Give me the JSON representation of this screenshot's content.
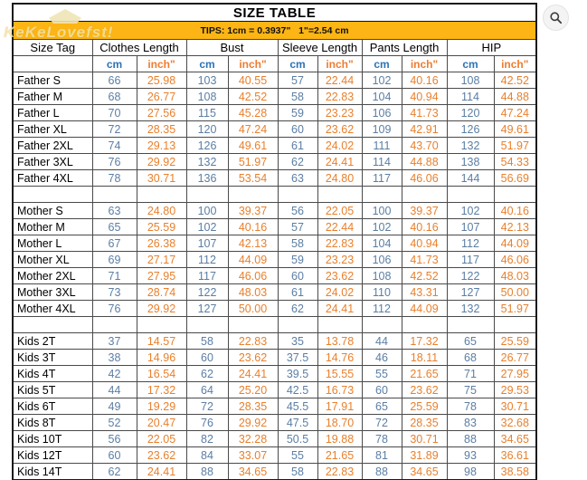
{
  "title": "SIZE TABLE",
  "tips": "TIPS: 1cm = 0.3937\"   1\"=2.54 cm",
  "watermark": {
    "text": "KeKeLovefst!",
    "icon": "house-shape"
  },
  "zoom_button": {
    "icon": "magnifier"
  },
  "colors": {
    "tips_bar": "#FCB514",
    "cm_header": "#2E74B5",
    "inch_header": "#ED7D31",
    "cm_value": "#5B7EA4",
    "inch_value": "#E8802D"
  },
  "columns": {
    "size_tag": "Size Tag",
    "groups": [
      "Clothes Length",
      "Bust",
      "Sleeve Length",
      "Pants Length",
      "HIP"
    ],
    "cm_label": "cm",
    "inch_label": "inch\""
  },
  "sections": [
    {
      "name": "Father",
      "rows": [
        {
          "tag": "Father S",
          "values": [
            "66",
            "25.98",
            "103",
            "40.55",
            "57",
            "22.44",
            "102",
            "40.16",
            "108",
            "42.52"
          ]
        },
        {
          "tag": "Father M",
          "values": [
            "68",
            "26.77",
            "108",
            "42.52",
            "58",
            "22.83",
            "104",
            "40.94",
            "114",
            "44.88"
          ]
        },
        {
          "tag": "Father L",
          "values": [
            "70",
            "27.56",
            "115",
            "45.28",
            "59",
            "23.23",
            "106",
            "41.73",
            "120",
            "47.24"
          ]
        },
        {
          "tag": "Father XL",
          "values": [
            "72",
            "28.35",
            "120",
            "47.24",
            "60",
            "23.62",
            "109",
            "42.91",
            "126",
            "49.61"
          ]
        },
        {
          "tag": "Father 2XL",
          "values": [
            "74",
            "29.13",
            "126",
            "49.61",
            "61",
            "24.02",
            "111",
            "43.70",
            "132",
            "51.97"
          ]
        },
        {
          "tag": "Father 3XL",
          "values": [
            "76",
            "29.92",
            "132",
            "51.97",
            "62",
            "24.41",
            "114",
            "44.88",
            "138",
            "54.33"
          ]
        },
        {
          "tag": "Father 4XL",
          "values": [
            "78",
            "30.71",
            "136",
            "53.54",
            "63",
            "24.80",
            "117",
            "46.06",
            "144",
            "56.69"
          ]
        }
      ]
    },
    {
      "name": "Mother",
      "rows": [
        {
          "tag": "Mother S",
          "values": [
            "63",
            "24.80",
            "100",
            "39.37",
            "56",
            "22.05",
            "100",
            "39.37",
            "102",
            "40.16"
          ]
        },
        {
          "tag": "Mother M",
          "values": [
            "65",
            "25.59",
            "102",
            "40.16",
            "57",
            "22.44",
            "102",
            "40.16",
            "107",
            "42.13"
          ]
        },
        {
          "tag": "Mother L",
          "values": [
            "67",
            "26.38",
            "107",
            "42.13",
            "58",
            "22.83",
            "104",
            "40.94",
            "112",
            "44.09"
          ]
        },
        {
          "tag": "Mother XL",
          "values": [
            "69",
            "27.17",
            "112",
            "44.09",
            "59",
            "23.23",
            "106",
            "41.73",
            "117",
            "46.06"
          ]
        },
        {
          "tag": "Mother 2XL",
          "values": [
            "71",
            "27.95",
            "117",
            "46.06",
            "60",
            "23.62",
            "108",
            "42.52",
            "122",
            "48.03"
          ]
        },
        {
          "tag": "Mother 3XL",
          "values": [
            "73",
            "28.74",
            "122",
            "48.03",
            "61",
            "24.02",
            "110",
            "43.31",
            "127",
            "50.00"
          ]
        },
        {
          "tag": "Mother 4XL",
          "values": [
            "76",
            "29.92",
            "127",
            "50.00",
            "62",
            "24.41",
            "112",
            "44.09",
            "132",
            "51.97"
          ]
        }
      ]
    },
    {
      "name": "Kids",
      "rows": [
        {
          "tag": "Kids 2T",
          "values": [
            "37",
            "14.57",
            "58",
            "22.83",
            "35",
            "13.78",
            "44",
            "17.32",
            "65",
            "25.59"
          ]
        },
        {
          "tag": "Kids 3T",
          "values": [
            "38",
            "14.96",
            "60",
            "23.62",
            "37.5",
            "14.76",
            "46",
            "18.11",
            "68",
            "26.77"
          ]
        },
        {
          "tag": "Kids 4T",
          "values": [
            "42",
            "16.54",
            "62",
            "24.41",
            "39.5",
            "15.55",
            "55",
            "21.65",
            "71",
            "27.95"
          ]
        },
        {
          "tag": "Kids 5T",
          "values": [
            "44",
            "17.32",
            "64",
            "25.20",
            "42.5",
            "16.73",
            "60",
            "23.62",
            "75",
            "29.53"
          ]
        },
        {
          "tag": "Kids 6T",
          "values": [
            "49",
            "19.29",
            "72",
            "28.35",
            "45.5",
            "17.91",
            "65",
            "25.59",
            "78",
            "30.71"
          ]
        },
        {
          "tag": "Kids 8T",
          "values": [
            "52",
            "20.47",
            "76",
            "29.92",
            "47.5",
            "18.70",
            "72",
            "28.35",
            "83",
            "32.68"
          ]
        },
        {
          "tag": "Kids 10T",
          "values": [
            "56",
            "22.05",
            "82",
            "32.28",
            "50.5",
            "19.88",
            "78",
            "30.71",
            "88",
            "34.65"
          ]
        },
        {
          "tag": "Kids 12T",
          "values": [
            "60",
            "23.62",
            "84",
            "33.07",
            "55",
            "21.65",
            "81",
            "31.89",
            "93",
            "36.61"
          ]
        },
        {
          "tag": "Kids 14T",
          "values": [
            "62",
            "24.41",
            "88",
            "34.65",
            "58",
            "22.83",
            "88",
            "34.65",
            "98",
            "38.58"
          ]
        }
      ]
    }
  ]
}
